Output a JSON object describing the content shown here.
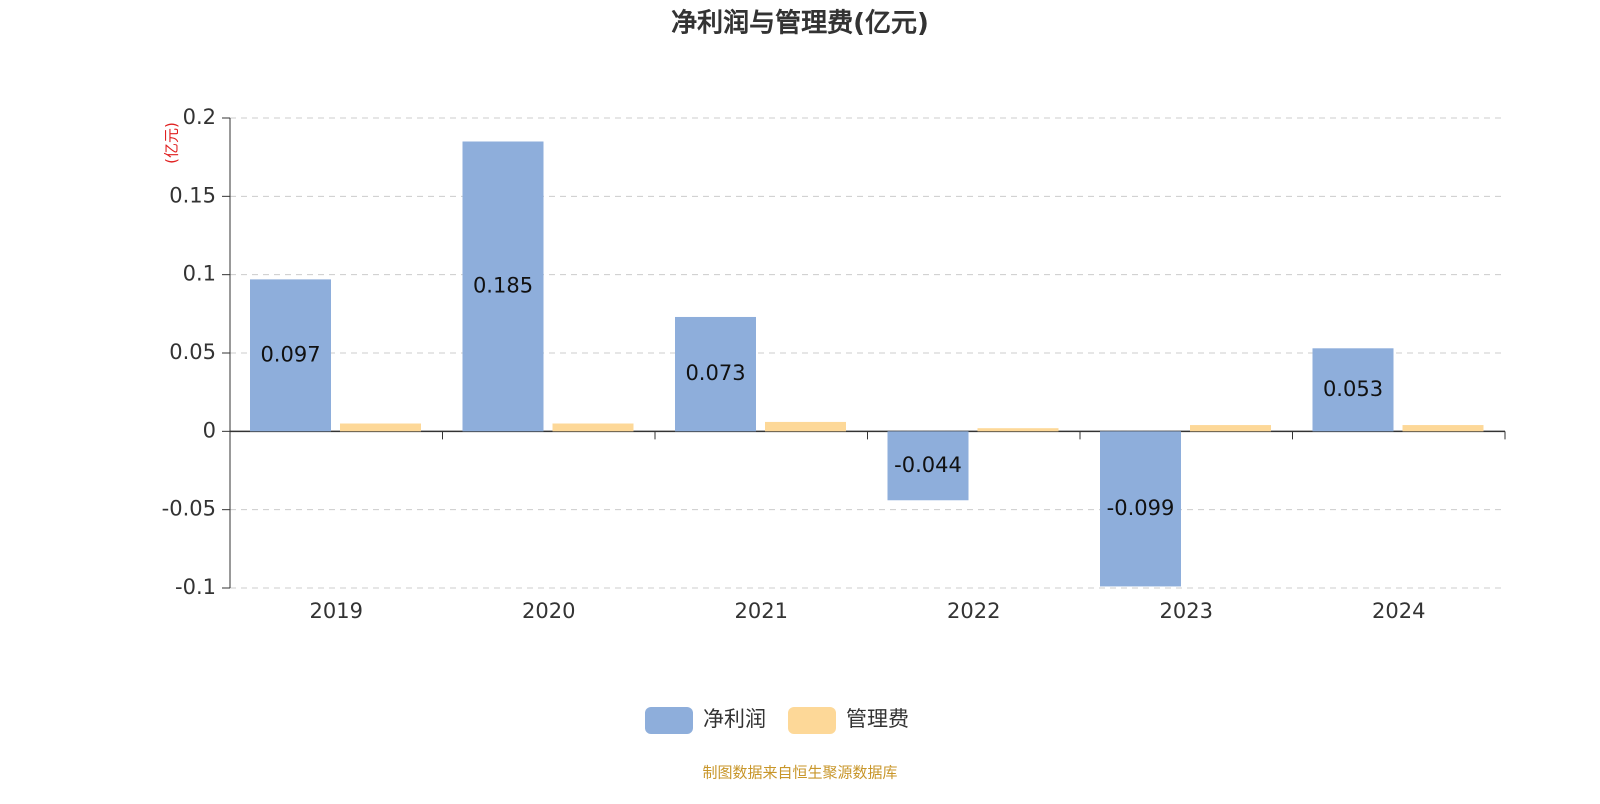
{
  "chart_data": {
    "type": "bar",
    "title": "净利润与管理费(亿元)",
    "y_label": "(亿元)",
    "categories": [
      "2019",
      "2020",
      "2021",
      "2022",
      "2023",
      "2024"
    ],
    "series": [
      {
        "name": "净利润",
        "color": "#8eaedb",
        "data_labels": true,
        "values": [
          0.097,
          0.185,
          0.073,
          -0.044,
          -0.099,
          0.053
        ]
      },
      {
        "name": "管理费",
        "color": "#fdd898",
        "data_labels": false,
        "values": [
          0.005,
          0.005,
          0.006,
          0.002,
          0.004,
          0.004
        ]
      }
    ],
    "ylim": [
      -0.1,
      0.2
    ],
    "yticks": [
      -0.1,
      -0.05,
      0,
      0.05,
      0.1,
      0.15,
      0.2
    ],
    "grid": true,
    "legend": "bottom",
    "source": "制图数据来自恒生聚源数据库"
  }
}
